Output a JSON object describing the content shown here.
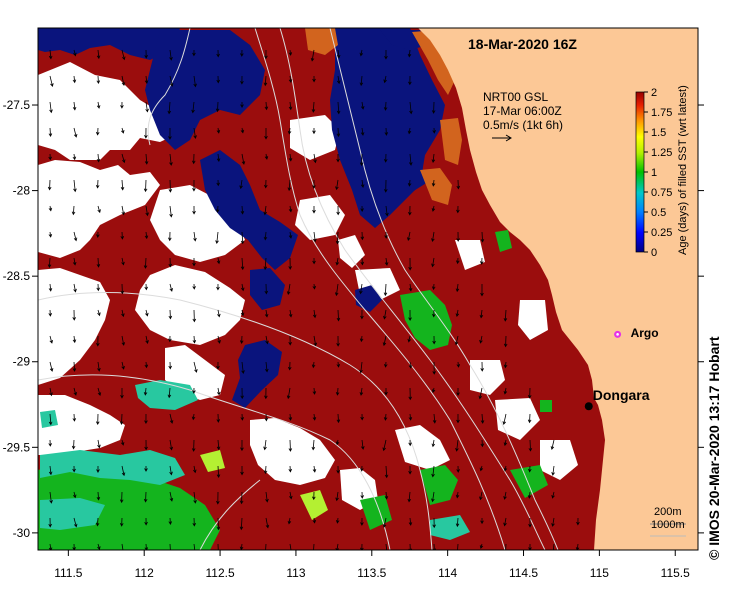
{
  "map": {
    "date_label": "18-Mar-2020 16Z",
    "x_ticks": [
      "111.5",
      "112",
      "112.5",
      "113",
      "113.5",
      "114",
      "114.5",
      "115",
      "115.5"
    ],
    "y_ticks": [
      "-27.5",
      "-28",
      "-28.5",
      "-29",
      "-29.5",
      "-30"
    ],
    "x_range": [
      111.3,
      115.65
    ],
    "y_range": [
      -30.1,
      -27.05
    ],
    "places": [
      {
        "name": "Dongara",
        "lon": 114.93,
        "lat": -29.26
      },
      {
        "name": "Argo",
        "lon": 115.12,
        "lat": -28.84
      }
    ],
    "current_legend": {
      "line1": "NRT00 GSL",
      "line2": "17-Mar 06:00Z",
      "line3": "0.5m/s (1kt 6h)"
    },
    "depth_legend": {
      "line1": "200m",
      "line2": "1000m"
    },
    "colorbar": {
      "title": "Age (days) of filled SST (wrt latest)",
      "ticks": [
        "0",
        "0.25",
        "0.5",
        "0.75",
        "1",
        "1.25",
        "1.5",
        "1.75",
        "2"
      ],
      "range": [
        0,
        2
      ]
    },
    "colors": {
      "land": "#fcc896",
      "age_0": "#0a147d",
      "age_2": "#9b0d0d",
      "orange": "#d2641e",
      "green": "#14b41e",
      "cyan": "#28c8a0",
      "lime": "#b4f032",
      "argo": "#e632e6"
    }
  },
  "credit": "© IMOS 20-Mar-2020 13:17 Hobart"
}
